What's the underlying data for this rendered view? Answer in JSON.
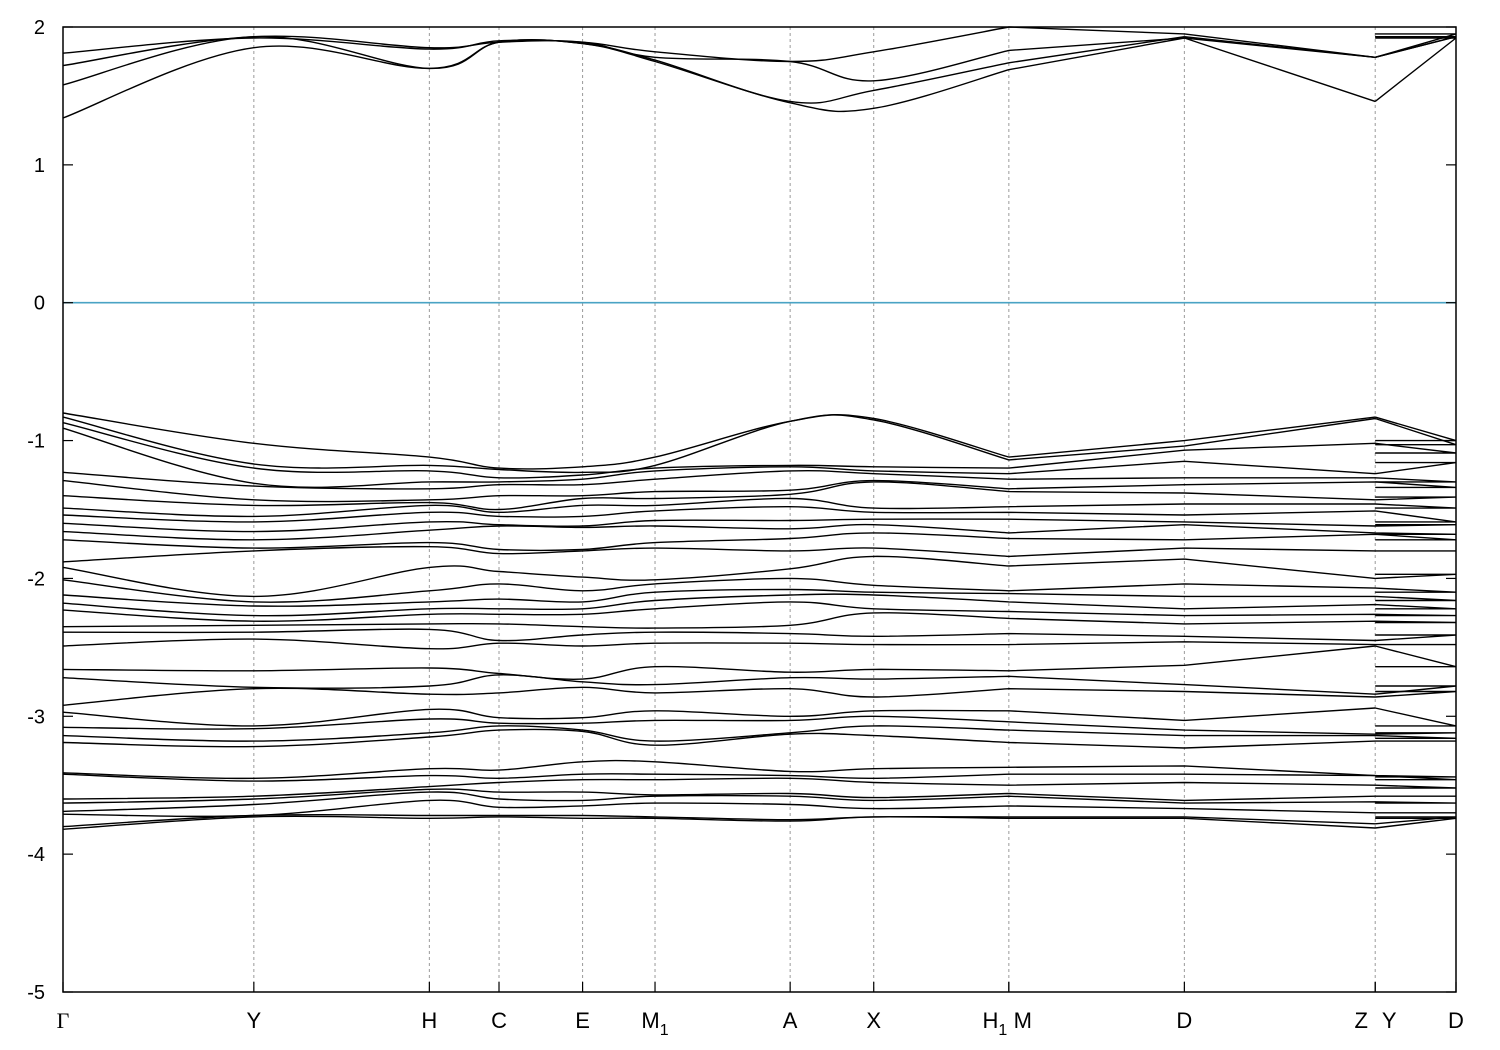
{
  "chart_data": {
    "type": "line",
    "ylim": [
      -5,
      2
    ],
    "yticks": [
      2,
      1,
      0,
      -1,
      -2,
      -3,
      -4,
      -5
    ],
    "fermi_level": 0,
    "fermi_color": "#4aa3c4",
    "band_color": "#000000",
    "kpoints": [
      {
        "label": "Γ",
        "sub": "",
        "pos": 0.0
      },
      {
        "label": "Y",
        "sub": "",
        "pos": 0.137
      },
      {
        "label": "H",
        "sub": "",
        "pos": 0.263
      },
      {
        "label": "C",
        "sub": "",
        "pos": 0.313
      },
      {
        "label": "E",
        "sub": "",
        "pos": 0.373
      },
      {
        "label": "M",
        "sub": "1",
        "pos": 0.425
      },
      {
        "label": "A",
        "sub": "",
        "pos": 0.522
      },
      {
        "label": "X",
        "sub": "",
        "pos": 0.582
      },
      {
        "label": "H",
        "sub": "1",
        "pos": 0.679
      },
      {
        "label": "M",
        "sub": "",
        "pos": 0.679
      },
      {
        "label": "D",
        "sub": "",
        "pos": 0.805
      },
      {
        "label": "Z",
        "sub": "",
        "pos": 0.942
      },
      {
        "label": "Y",
        "sub": "",
        "pos": 0.942
      },
      {
        "label": "D",
        "sub": "",
        "pos": 1.0
      }
    ],
    "x": [
      0.0,
      0.137,
      0.263,
      0.313,
      0.373,
      0.425,
      0.522,
      0.582,
      0.679,
      0.805,
      0.942,
      1.0
    ],
    "segments": [
      [
        0,
        8
      ],
      [
        9,
        10
      ],
      [
        11,
        11
      ]
    ],
    "conduction_bands": [
      [
        1.81,
        1.92,
        1.84,
        1.9,
        1.89,
        1.82,
        1.75,
        1.82,
        2.0,
        1.95,
        1.78,
        1.95
      ],
      [
        1.72,
        1.93,
        1.85,
        1.89,
        1.89,
        1.78,
        1.75,
        1.61,
        1.83,
        1.92,
        1.78,
        1.93
      ],
      [
        1.58,
        1.93,
        1.7,
        1.89,
        1.88,
        1.76,
        1.46,
        1.54,
        1.74,
        1.93,
        1.78,
        1.93
      ],
      [
        1.34,
        1.85,
        1.7,
        1.89,
        1.88,
        1.75,
        1.45,
        1.41,
        1.69,
        1.92,
        1.46,
        1.92
      ]
    ],
    "valence_bands": [
      [
        -0.8,
        -1.02,
        -1.12,
        -1.2,
        -1.19,
        -1.12,
        -0.86,
        -0.84,
        -1.12,
        -1.0,
        -0.83,
        -1.0
      ],
      [
        -0.83,
        -1.17,
        -1.18,
        -1.21,
        -1.23,
        -1.18,
        -0.86,
        -0.85,
        -1.14,
        -1.04,
        -0.84,
        -1.03
      ],
      [
        -0.87,
        -1.2,
        -1.22,
        -1.27,
        -1.25,
        -1.2,
        -1.18,
        -1.19,
        -1.2,
        -1.07,
        -1.02,
        -1.09
      ],
      [
        -0.91,
        -1.31,
        -1.3,
        -1.3,
        -1.28,
        -1.22,
        -1.19,
        -1.22,
        -1.24,
        -1.15,
        -1.24,
        -1.16
      ],
      [
        -1.23,
        -1.33,
        -1.35,
        -1.32,
        -1.32,
        -1.28,
        -1.22,
        -1.24,
        -1.28,
        -1.27,
        -1.27,
        -1.3
      ],
      [
        -1.29,
        -1.43,
        -1.43,
        -1.4,
        -1.4,
        -1.37,
        -1.36,
        -1.29,
        -1.35,
        -1.32,
        -1.3,
        -1.34
      ],
      [
        -1.4,
        -1.47,
        -1.45,
        -1.5,
        -1.42,
        -1.42,
        -1.39,
        -1.3,
        -1.37,
        -1.38,
        -1.43,
        -1.41
      ],
      [
        -1.49,
        -1.55,
        -1.47,
        -1.52,
        -1.47,
        -1.47,
        -1.42,
        -1.49,
        -1.48,
        -1.46,
        -1.46,
        -1.49
      ],
      [
        -1.54,
        -1.59,
        -1.52,
        -1.55,
        -1.55,
        -1.51,
        -1.48,
        -1.52,
        -1.52,
        -1.54,
        -1.51,
        -1.59
      ],
      [
        -1.6,
        -1.66,
        -1.59,
        -1.61,
        -1.62,
        -1.58,
        -1.58,
        -1.57,
        -1.57,
        -1.59,
        -1.62,
        -1.61
      ],
      [
        -1.66,
        -1.72,
        -1.65,
        -1.62,
        -1.63,
        -1.62,
        -1.64,
        -1.61,
        -1.67,
        -1.61,
        -1.67,
        -1.68
      ],
      [
        -1.72,
        -1.78,
        -1.74,
        -1.79,
        -1.79,
        -1.74,
        -1.71,
        -1.67,
        -1.71,
        -1.72,
        -1.68,
        -1.72
      ],
      [
        -1.88,
        -1.8,
        -1.77,
        -1.82,
        -1.8,
        -1.78,
        -1.8,
        -1.78,
        -1.84,
        -1.78,
        -1.8,
        -1.8
      ],
      [
        -1.92,
        -2.13,
        -1.92,
        -1.95,
        -1.99,
        -2.01,
        -1.93,
        -1.84,
        -1.91,
        -1.86,
        -2.0,
        -1.97
      ],
      [
        -2.01,
        -2.17,
        -2.09,
        -2.04,
        -2.09,
        -2.04,
        -2.0,
        -2.05,
        -2.09,
        -2.04,
        -2.07,
        -2.1
      ],
      [
        -2.12,
        -2.2,
        -2.17,
        -2.15,
        -2.17,
        -2.1,
        -2.08,
        -2.1,
        -2.11,
        -2.13,
        -2.13,
        -2.16
      ],
      [
        -2.18,
        -2.27,
        -2.22,
        -2.22,
        -2.22,
        -2.16,
        -2.12,
        -2.12,
        -2.17,
        -2.22,
        -2.19,
        -2.22
      ],
      [
        -2.23,
        -2.31,
        -2.26,
        -2.26,
        -2.26,
        -2.22,
        -2.17,
        -2.22,
        -2.24,
        -2.27,
        -2.26,
        -2.27
      ],
      [
        -2.35,
        -2.34,
        -2.33,
        -2.33,
        -2.35,
        -2.36,
        -2.34,
        -2.25,
        -2.29,
        -2.33,
        -2.31,
        -2.32
      ],
      [
        -2.39,
        -2.39,
        -2.37,
        -2.45,
        -2.41,
        -2.39,
        -2.4,
        -2.42,
        -2.4,
        -2.42,
        -2.45,
        -2.41
      ],
      [
        -2.49,
        -2.44,
        -2.51,
        -2.47,
        -2.49,
        -2.47,
        -2.47,
        -2.48,
        -2.48,
        -2.46,
        -2.48,
        -2.48
      ],
      [
        -2.66,
        -2.67,
        -2.65,
        -2.69,
        -2.73,
        -2.64,
        -2.68,
        -2.66,
        -2.67,
        -2.63,
        -2.49,
        -2.64
      ],
      [
        -2.72,
        -2.79,
        -2.78,
        -2.7,
        -2.75,
        -2.77,
        -2.72,
        -2.73,
        -2.71,
        -2.77,
        -2.84,
        -2.78
      ],
      [
        -2.92,
        -2.8,
        -2.84,
        -2.83,
        -2.79,
        -2.83,
        -2.8,
        -2.86,
        -2.8,
        -2.82,
        -2.86,
        -2.82
      ],
      [
        -2.97,
        -3.07,
        -2.95,
        -3.01,
        -3.01,
        -2.96,
        -3.0,
        -2.96,
        -2.96,
        -3.03,
        -2.94,
        -3.07
      ],
      [
        -3.08,
        -3.09,
        -3.02,
        -3.05,
        -3.05,
        -3.03,
        -3.03,
        -3.0,
        -3.04,
        -3.1,
        -3.13,
        -3.12
      ],
      [
        -3.14,
        -3.18,
        -3.12,
        -3.07,
        -3.1,
        -3.18,
        -3.12,
        -3.07,
        -3.1,
        -3.14,
        -3.14,
        -3.16
      ],
      [
        -3.19,
        -3.22,
        -3.15,
        -3.1,
        -3.11,
        -3.21,
        -3.13,
        -3.14,
        -3.19,
        -3.23,
        -3.18,
        -3.18
      ],
      [
        -3.41,
        -3.45,
        -3.38,
        -3.39,
        -3.33,
        -3.33,
        -3.4,
        -3.38,
        -3.37,
        -3.36,
        -3.43,
        -3.44
      ],
      [
        -3.42,
        -3.47,
        -3.43,
        -3.45,
        -3.42,
        -3.42,
        -3.43,
        -3.45,
        -3.42,
        -3.42,
        -3.43,
        -3.46
      ],
      [
        -3.6,
        -3.58,
        -3.51,
        -3.48,
        -3.46,
        -3.46,
        -3.45,
        -3.48,
        -3.5,
        -3.48,
        -3.5,
        -3.52
      ],
      [
        -3.63,
        -3.6,
        -3.53,
        -3.55,
        -3.55,
        -3.57,
        -3.56,
        -3.59,
        -3.56,
        -3.61,
        -3.58,
        -3.58
      ],
      [
        -3.69,
        -3.64,
        -3.55,
        -3.6,
        -3.61,
        -3.58,
        -3.58,
        -3.61,
        -3.58,
        -3.63,
        -3.62,
        -3.63
      ],
      [
        -3.71,
        -3.72,
        -3.61,
        -3.66,
        -3.65,
        -3.63,
        -3.64,
        -3.67,
        -3.65,
        -3.67,
        -3.7,
        -3.7
      ],
      [
        -3.8,
        -3.72,
        -3.72,
        -3.72,
        -3.72,
        -3.73,
        -3.75,
        -3.73,
        -3.73,
        -3.73,
        -3.78,
        -3.73
      ],
      [
        -3.82,
        -3.73,
        -3.74,
        -3.73,
        -3.74,
        -3.74,
        -3.76,
        -3.73,
        -3.74,
        -3.74,
        -3.81,
        -3.74
      ]
    ]
  }
}
